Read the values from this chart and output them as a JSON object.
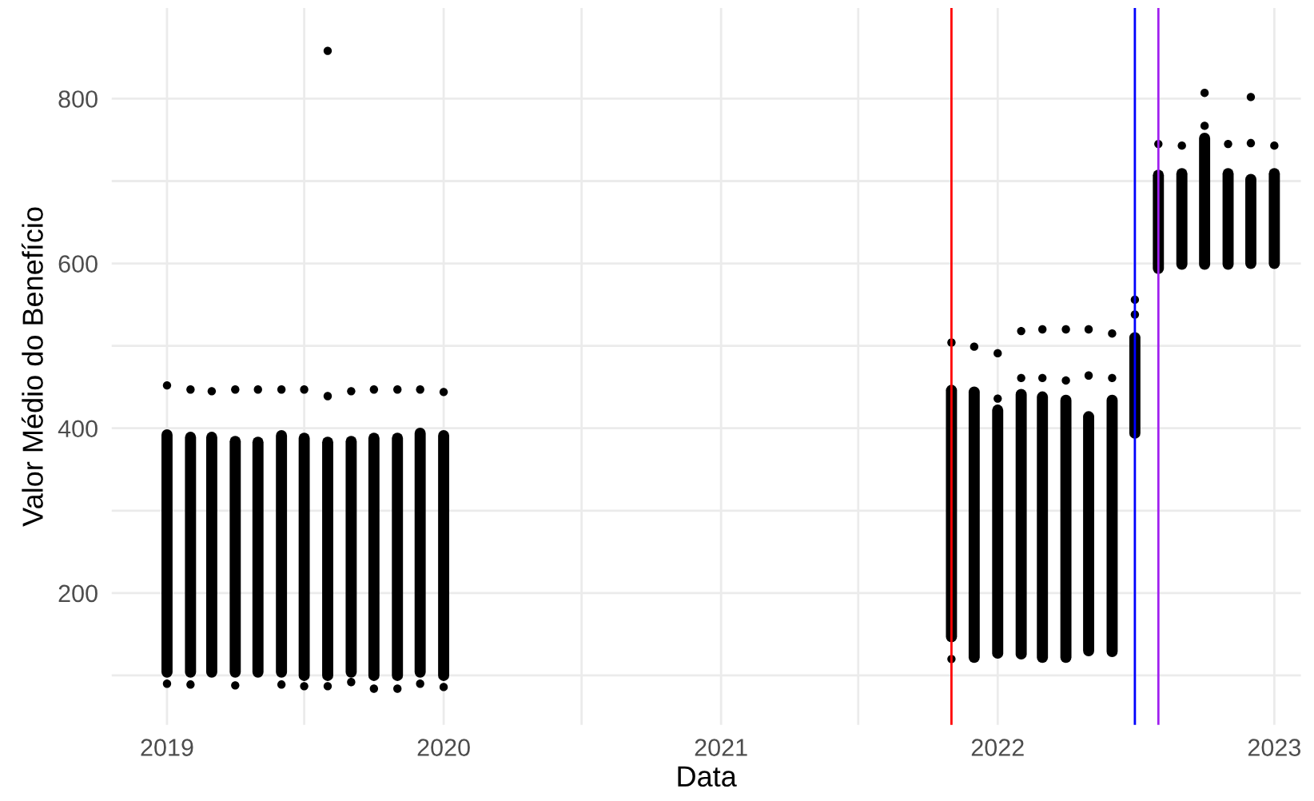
{
  "chart_data": {
    "type": "scatter",
    "xlabel": "Data",
    "ylabel": "Valor Médio do Benefício",
    "xlim": [
      "2018-10-20",
      "2023-02-05"
    ],
    "ylim": [
      40,
      910
    ],
    "xticks": [
      {
        "value": "2019-01-01",
        "label": "2019"
      },
      {
        "value": "2019-07-01",
        "label": null
      },
      {
        "value": "2020-01-01",
        "label": "2020"
      },
      {
        "value": "2020-07-01",
        "label": null
      },
      {
        "value": "2021-01-01",
        "label": "2021"
      },
      {
        "value": "2021-07-01",
        "label": null
      },
      {
        "value": "2022-01-01",
        "label": "2022"
      },
      {
        "value": "2022-07-01",
        "label": null
      },
      {
        "value": "2023-01-01",
        "label": "2023"
      }
    ],
    "yticks": [
      {
        "value": 100,
        "label": null
      },
      200,
      {
        "value": 300,
        "label": null
      },
      400,
      {
        "value": 500,
        "label": null
      },
      600,
      {
        "value": 700,
        "label": null
      },
      800
    ],
    "grid": true,
    "series": [
      {
        "type": "line",
        "marker": "none",
        "color": "#000000",
        "x": [
          "2019-01",
          "2019-01"
        ],
        "values": [
          104,
          392
        ]
      },
      {
        "type": "line",
        "marker": "none",
        "color": "#000000",
        "x": [
          "2019-02",
          "2019-02"
        ],
        "values": [
          104,
          389
        ]
      },
      {
        "type": "line",
        "marker": "none",
        "color": "#000000",
        "x": [
          "2019-03",
          "2019-03"
        ],
        "values": [
          104,
          389
        ]
      },
      {
        "type": "line",
        "marker": "none",
        "color": "#000000",
        "x": [
          "2019-04",
          "2019-04"
        ],
        "values": [
          104,
          384
        ]
      },
      {
        "type": "line",
        "marker": "none",
        "color": "#000000",
        "x": [
          "2019-05",
          "2019-05"
        ],
        "values": [
          104,
          383
        ]
      },
      {
        "type": "line",
        "marker": "none",
        "color": "#000000",
        "x": [
          "2019-06",
          "2019-06"
        ],
        "values": [
          104,
          391
        ]
      },
      {
        "type": "line",
        "marker": "none",
        "color": "#000000",
        "x": [
          "2019-07",
          "2019-07"
        ],
        "values": [
          100,
          388
        ]
      },
      {
        "type": "line",
        "marker": "none",
        "color": "#000000",
        "x": [
          "2019-08",
          "2019-08"
        ],
        "values": [
          100,
          383
        ]
      },
      {
        "type": "line",
        "marker": "none",
        "color": "#000000",
        "x": [
          "2019-09",
          "2019-09"
        ],
        "values": [
          104,
          384
        ]
      },
      {
        "type": "line",
        "marker": "none",
        "color": "#000000",
        "x": [
          "2019-10",
          "2019-10"
        ],
        "values": [
          100,
          388
        ]
      },
      {
        "type": "line",
        "marker": "none",
        "color": "#000000",
        "x": [
          "2019-11",
          "2019-11"
        ],
        "values": [
          100,
          388
        ]
      },
      {
        "type": "line",
        "marker": "none",
        "color": "#000000",
        "x": [
          "2019-12",
          "2019-12"
        ],
        "values": [
          104,
          394
        ]
      },
      {
        "type": "line",
        "marker": "none",
        "color": "#000000",
        "x": [
          "2020-01",
          "2020-01"
        ],
        "values": [
          100,
          391
        ]
      },
      {
        "type": "line",
        "marker": "none",
        "color": "#000000",
        "x": [
          "2021-11",
          "2021-11"
        ],
        "values": [
          147,
          446
        ]
      },
      {
        "type": "line",
        "marker": "none",
        "color": "#000000",
        "x": [
          "2021-12",
          "2021-12"
        ],
        "values": [
          122,
          444
        ]
      },
      {
        "type": "line",
        "marker": "none",
        "color": "#000000",
        "x": [
          "2022-01",
          "2022-01"
        ],
        "values": [
          127,
          422
        ]
      },
      {
        "type": "line",
        "marker": "none",
        "color": "#000000",
        "x": [
          "2022-02",
          "2022-02"
        ],
        "values": [
          126,
          441
        ]
      },
      {
        "type": "line",
        "marker": "none",
        "color": "#000000",
        "x": [
          "2022-03",
          "2022-03"
        ],
        "values": [
          122,
          438
        ]
      },
      {
        "type": "line",
        "marker": "none",
        "color": "#000000",
        "x": [
          "2022-04",
          "2022-04"
        ],
        "values": [
          122,
          434
        ]
      },
      {
        "type": "line",
        "marker": "none",
        "color": "#000000",
        "x": [
          "2022-05",
          "2022-05"
        ],
        "values": [
          130,
          414
        ]
      },
      {
        "type": "line",
        "marker": "none",
        "color": "#000000",
        "x": [
          "2022-06",
          "2022-06"
        ],
        "values": [
          129,
          434
        ]
      },
      {
        "type": "line",
        "marker": "none",
        "color": "#000000",
        "x": [
          "2022-07",
          "2022-07"
        ],
        "values": [
          394,
          510
        ]
      },
      {
        "type": "line",
        "marker": "none",
        "color": "#000000",
        "x": [
          "2022-08",
          "2022-08"
        ],
        "values": [
          594,
          707
        ]
      },
      {
        "type": "line",
        "marker": "none",
        "color": "#000000",
        "x": [
          "2022-09",
          "2022-09"
        ],
        "values": [
          599,
          709
        ]
      },
      {
        "type": "line",
        "marker": "none",
        "color": "#000000",
        "x": [
          "2022-10",
          "2022-10"
        ],
        "values": [
          599,
          752
        ]
      },
      {
        "type": "line",
        "marker": "none",
        "color": "#000000",
        "x": [
          "2022-11",
          "2022-11"
        ],
        "values": [
          599,
          709
        ]
      },
      {
        "type": "line",
        "marker": "none",
        "color": "#000000",
        "x": [
          "2022-12",
          "2022-12"
        ],
        "values": [
          600,
          702
        ]
      },
      {
        "type": "line",
        "marker": "none",
        "color": "#000000",
        "x": [
          "2023-01",
          "2023-01"
        ],
        "values": [
          600,
          709
        ]
      },
      {
        "marker": "circle",
        "color": "#000000",
        "x": [
          "2019-01",
          "2019-01",
          "2019-02",
          "2019-02",
          "2019-03",
          "2019-04",
          "2019-04",
          "2019-05",
          "2019-06",
          "2019-06",
          "2019-07",
          "2019-07",
          "2019-08",
          "2019-08",
          "2019-08",
          "2019-09",
          "2019-09",
          "2019-10",
          "2019-10",
          "2019-11",
          "2019-11",
          "2019-12",
          "2019-12",
          "2020-01",
          "2020-01",
          "2021-11",
          "2021-11",
          "2021-12",
          "2022-01",
          "2022-01",
          "2022-02",
          "2022-02",
          "2022-03",
          "2022-03",
          "2022-04",
          "2022-04",
          "2022-05",
          "2022-05",
          "2022-06",
          "2022-06",
          "2022-07",
          "2022-07",
          "2022-08",
          "2022-09",
          "2022-10",
          "2022-10",
          "2022-11",
          "2022-12",
          "2022-12",
          "2023-01"
        ],
        "values": [
          452,
          90,
          447,
          89,
          445,
          447,
          88,
          447,
          447,
          89,
          447,
          87,
          439,
          87,
          858,
          445,
          92,
          447,
          84,
          447,
          84,
          447,
          90,
          444,
          86,
          504,
          120,
          499,
          491,
          436,
          518,
          461,
          520,
          461,
          520,
          458,
          520,
          464,
          515,
          461,
          556,
          538,
          745,
          743,
          807,
          767,
          745,
          802,
          746,
          743
        ]
      }
    ],
    "ref_lines": [
      {
        "axis": "x",
        "value": "2021-11-01",
        "color": "#ff0000"
      },
      {
        "axis": "x",
        "value": "2022-07-01",
        "color": "#0000ff"
      },
      {
        "axis": "x",
        "value": "2022-08-01",
        "color": "#a020f0"
      }
    ]
  }
}
